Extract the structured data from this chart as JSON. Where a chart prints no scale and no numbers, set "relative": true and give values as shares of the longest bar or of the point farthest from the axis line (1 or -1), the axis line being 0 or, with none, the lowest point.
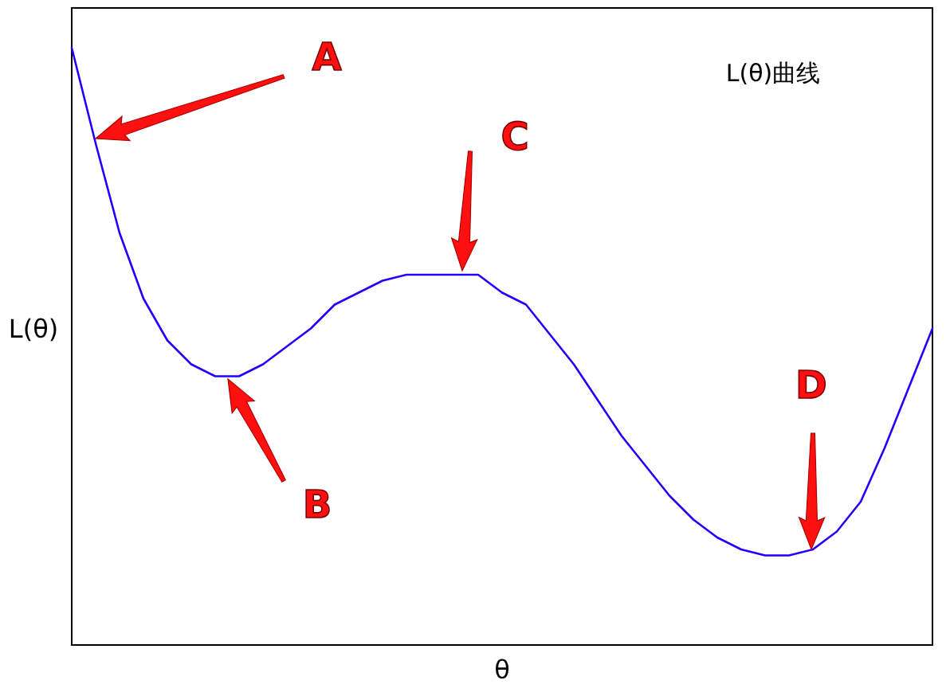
{
  "chart_data": {
    "type": "line",
    "relative": true,
    "xlabel": "θ",
    "ylabel": "L(θ)",
    "color": "#2200ff",
    "categories": [
      null,
      null,
      null,
      null,
      null,
      null,
      null,
      null,
      null,
      null,
      null,
      null,
      null,
      null,
      null,
      null,
      null,
      null,
      null,
      null,
      null,
      null,
      null,
      null,
      null,
      null,
      null,
      null,
      null,
      null,
      null,
      null,
      null,
      null,
      null,
      null,
      null
    ],
    "values": [
      1.0,
      0.84,
      0.69,
      0.58,
      0.51,
      0.47,
      0.45,
      0.45,
      0.47,
      0.5,
      0.53,
      0.57,
      0.59,
      0.61,
      0.62,
      0.62,
      0.62,
      0.62,
      0.59,
      0.57,
      0.52,
      0.47,
      0.41,
      0.35,
      0.3,
      0.25,
      0.21,
      0.18,
      0.16,
      0.15,
      0.15,
      0.16,
      0.19,
      0.24,
      0.33,
      0.43,
      0.53
    ],
    "annotations": [
      "A",
      "B",
      "C",
      "D",
      "L(θ)曲线"
    ]
  }
}
